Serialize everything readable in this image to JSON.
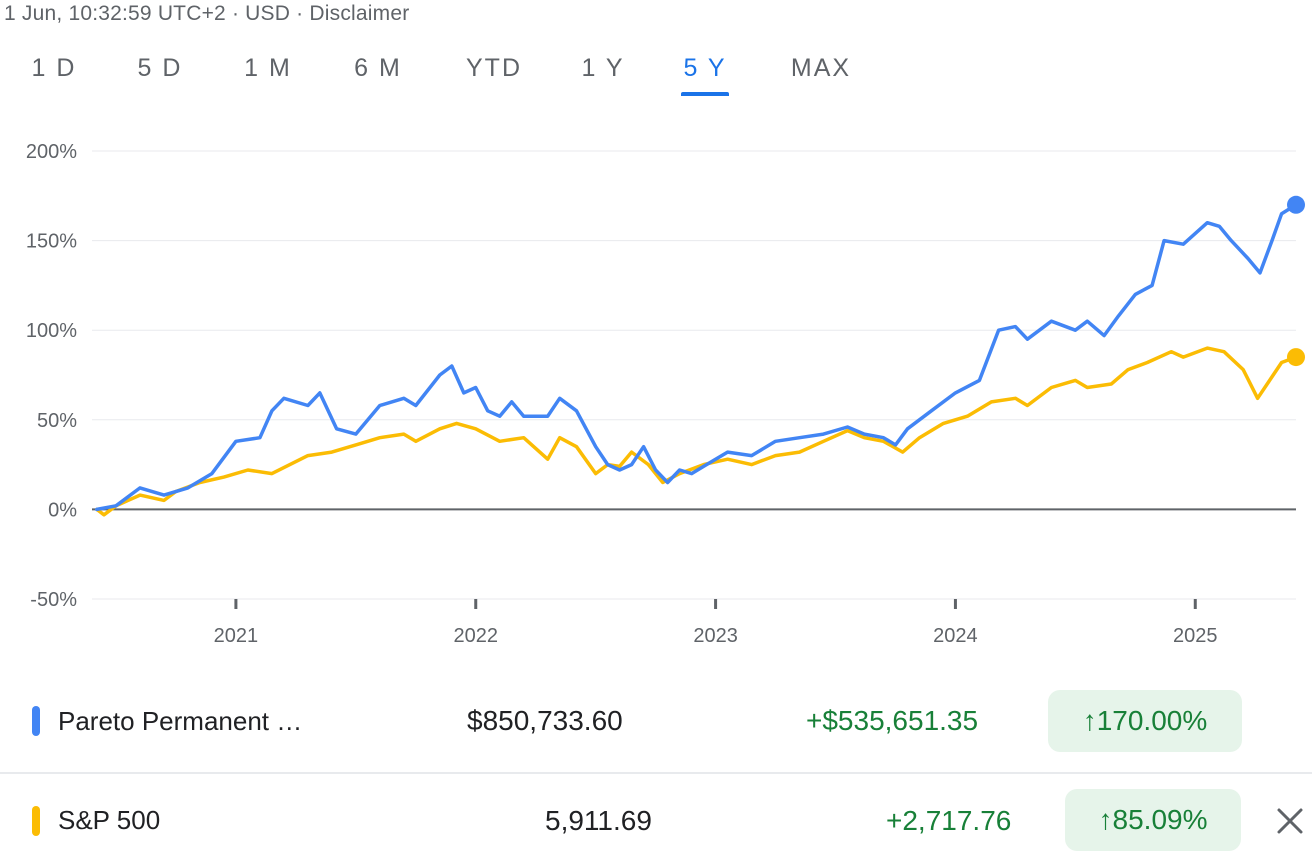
{
  "header": {
    "timestamp": "1 Jun, 10:32:59 UTC+2 · USD · Disclaimer"
  },
  "tabs": [
    {
      "label": "1 D",
      "active": false
    },
    {
      "label": "5 D",
      "active": false
    },
    {
      "label": "1 M",
      "active": false
    },
    {
      "label": "6 M",
      "active": false
    },
    {
      "label": "YTD",
      "active": false
    },
    {
      "label": "1 Y",
      "active": false
    },
    {
      "label": "5 Y",
      "active": true
    },
    {
      "label": "MAX",
      "active": false
    }
  ],
  "chart_data": {
    "type": "line",
    "y_ticks": [
      "200%",
      "150%",
      "100%",
      "50%",
      "0%",
      "-50%"
    ],
    "ylim": [
      -50,
      200
    ],
    "x_ticks": [
      "2021",
      "2022",
      "2023",
      "2024",
      "2025"
    ],
    "xlim": [
      2020.4,
      2025.42
    ],
    "grid": true,
    "series": [
      {
        "name": "Pareto Permanent …",
        "color": "#4285f4",
        "points": [
          [
            2020.42,
            0
          ],
          [
            2020.5,
            2
          ],
          [
            2020.6,
            12
          ],
          [
            2020.7,
            8
          ],
          [
            2020.8,
            12
          ],
          [
            2020.9,
            20
          ],
          [
            2021.0,
            38
          ],
          [
            2021.1,
            40
          ],
          [
            2021.15,
            55
          ],
          [
            2021.2,
            62
          ],
          [
            2021.3,
            58
          ],
          [
            2021.35,
            65
          ],
          [
            2021.42,
            45
          ],
          [
            2021.5,
            42
          ],
          [
            2021.6,
            58
          ],
          [
            2021.7,
            62
          ],
          [
            2021.75,
            58
          ],
          [
            2021.85,
            75
          ],
          [
            2021.9,
            80
          ],
          [
            2021.95,
            65
          ],
          [
            2022.0,
            68
          ],
          [
            2022.05,
            55
          ],
          [
            2022.1,
            52
          ],
          [
            2022.15,
            60
          ],
          [
            2022.2,
            52
          ],
          [
            2022.3,
            52
          ],
          [
            2022.35,
            62
          ],
          [
            2022.42,
            55
          ],
          [
            2022.5,
            35
          ],
          [
            2022.55,
            25
          ],
          [
            2022.6,
            22
          ],
          [
            2022.65,
            25
          ],
          [
            2022.7,
            35
          ],
          [
            2022.75,
            22
          ],
          [
            2022.8,
            15
          ],
          [
            2022.85,
            22
          ],
          [
            2022.9,
            20
          ],
          [
            2022.95,
            24
          ],
          [
            2023.05,
            32
          ],
          [
            2023.15,
            30
          ],
          [
            2023.25,
            38
          ],
          [
            2023.35,
            40
          ],
          [
            2023.45,
            42
          ],
          [
            2023.55,
            46
          ],
          [
            2023.62,
            42
          ],
          [
            2023.7,
            40
          ],
          [
            2023.75,
            36
          ],
          [
            2023.8,
            45
          ],
          [
            2023.9,
            55
          ],
          [
            2024.0,
            65
          ],
          [
            2024.1,
            72
          ],
          [
            2024.18,
            100
          ],
          [
            2024.25,
            102
          ],
          [
            2024.3,
            95
          ],
          [
            2024.4,
            105
          ],
          [
            2024.5,
            100
          ],
          [
            2024.55,
            105
          ],
          [
            2024.62,
            97
          ],
          [
            2024.68,
            108
          ],
          [
            2024.75,
            120
          ],
          [
            2024.82,
            125
          ],
          [
            2024.87,
            150
          ],
          [
            2024.95,
            148
          ],
          [
            2025.05,
            160
          ],
          [
            2025.1,
            158
          ],
          [
            2025.15,
            150
          ],
          [
            2025.22,
            140
          ],
          [
            2025.27,
            132
          ],
          [
            2025.32,
            150
          ],
          [
            2025.36,
            165
          ],
          [
            2025.42,
            170
          ]
        ]
      },
      {
        "name": "S&P 500",
        "color": "#fbbc04",
        "points": [
          [
            2020.42,
            0
          ],
          [
            2020.45,
            -3
          ],
          [
            2020.5,
            2
          ],
          [
            2020.6,
            8
          ],
          [
            2020.7,
            5
          ],
          [
            2020.75,
            10
          ],
          [
            2020.85,
            15
          ],
          [
            2020.95,
            18
          ],
          [
            2021.05,
            22
          ],
          [
            2021.15,
            20
          ],
          [
            2021.3,
            30
          ],
          [
            2021.4,
            32
          ],
          [
            2021.5,
            36
          ],
          [
            2021.6,
            40
          ],
          [
            2021.7,
            42
          ],
          [
            2021.75,
            38
          ],
          [
            2021.85,
            45
          ],
          [
            2021.92,
            48
          ],
          [
            2022.0,
            45
          ],
          [
            2022.1,
            38
          ],
          [
            2022.2,
            40
          ],
          [
            2022.3,
            28
          ],
          [
            2022.35,
            40
          ],
          [
            2022.42,
            35
          ],
          [
            2022.5,
            20
          ],
          [
            2022.55,
            25
          ],
          [
            2022.6,
            24
          ],
          [
            2022.65,
            32
          ],
          [
            2022.72,
            25
          ],
          [
            2022.78,
            15
          ],
          [
            2022.85,
            20
          ],
          [
            2022.95,
            25
          ],
          [
            2023.05,
            28
          ],
          [
            2023.15,
            25
          ],
          [
            2023.25,
            30
          ],
          [
            2023.35,
            32
          ],
          [
            2023.45,
            38
          ],
          [
            2023.55,
            44
          ],
          [
            2023.62,
            40
          ],
          [
            2023.7,
            38
          ],
          [
            2023.78,
            32
          ],
          [
            2023.85,
            40
          ],
          [
            2023.95,
            48
          ],
          [
            2024.05,
            52
          ],
          [
            2024.15,
            60
          ],
          [
            2024.25,
            62
          ],
          [
            2024.3,
            58
          ],
          [
            2024.4,
            68
          ],
          [
            2024.5,
            72
          ],
          [
            2024.55,
            68
          ],
          [
            2024.65,
            70
          ],
          [
            2024.72,
            78
          ],
          [
            2024.8,
            82
          ],
          [
            2024.9,
            88
          ],
          [
            2024.95,
            85
          ],
          [
            2025.05,
            90
          ],
          [
            2025.12,
            88
          ],
          [
            2025.2,
            78
          ],
          [
            2025.26,
            62
          ],
          [
            2025.3,
            70
          ],
          [
            2025.36,
            82
          ],
          [
            2025.42,
            85
          ]
        ]
      }
    ]
  },
  "comparison": [
    {
      "name": "Pareto Permanent …",
      "color": "#4285f4",
      "value": "$850,733.60",
      "change": "+$535,651.35",
      "percent": "↑170.00%"
    },
    {
      "name": "S&P 500",
      "color": "#fbbc04",
      "value": "5,911.69",
      "change": "+2,717.76",
      "percent": "↑85.09%"
    }
  ]
}
